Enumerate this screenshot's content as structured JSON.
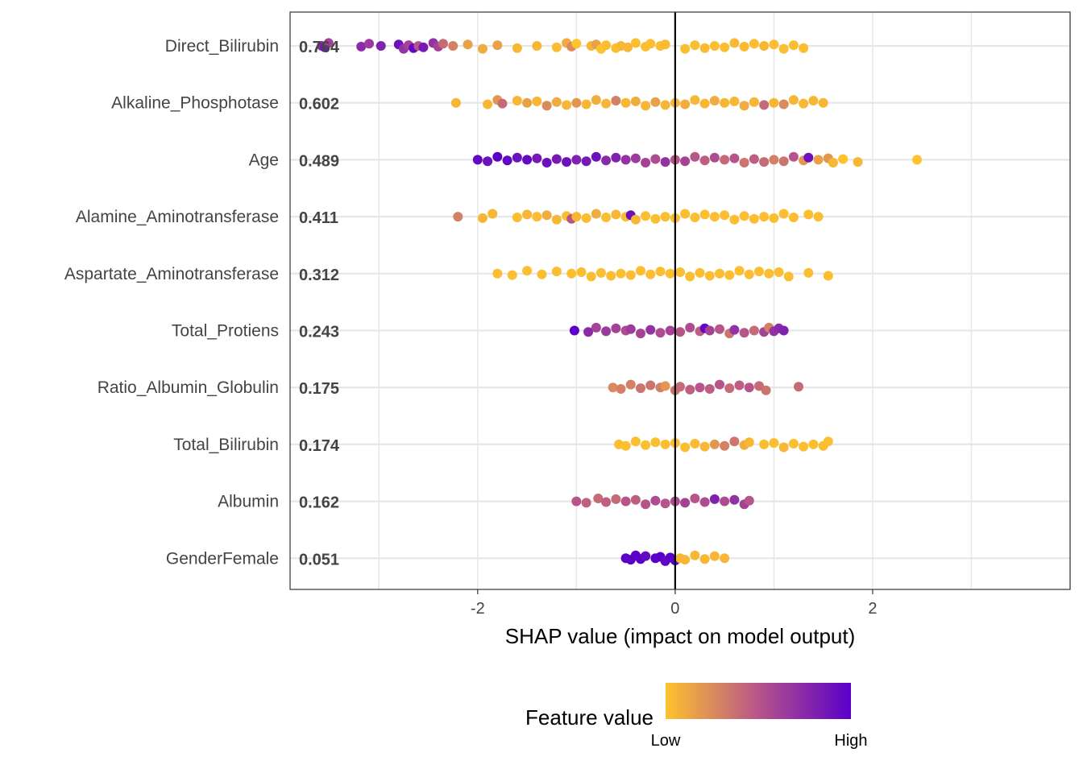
{
  "chart_data": {
    "type": "scatter",
    "subtype": "shap-summary-beeswarm",
    "xlabel": "SHAP value (impact on model output)",
    "xlim": [
      -3.9,
      4.0
    ],
    "x_ticks": [
      -2,
      0,
      2
    ],
    "x_tick_labels": [
      "-2",
      "0",
      "2"
    ],
    "zero_line": 0,
    "grid": true,
    "legend": {
      "title": "Feature value",
      "position": "bottom",
      "low_label": "Low",
      "high_label": "High",
      "low_color": "#FEC22C",
      "mid_color": "#B7548A",
      "high_color": "#5A00C8"
    },
    "features": [
      {
        "name": "Direct_Bilirubin",
        "mean_abs_shap": "0.764",
        "points": [
          [
            -3.58,
            0.75
          ],
          [
            -3.55,
            0.85
          ],
          [
            -3.51,
            0.6
          ],
          [
            -3.18,
            0.75
          ],
          [
            -3.1,
            0.65
          ],
          [
            -2.98,
            0.8
          ],
          [
            -2.8,
            0.9
          ],
          [
            -2.75,
            0.7
          ],
          [
            -2.7,
            0.6
          ],
          [
            -2.65,
            0.95
          ],
          [
            -2.6,
            0.5
          ],
          [
            -2.55,
            0.85
          ],
          [
            -2.45,
            0.7
          ],
          [
            -2.4,
            0.6
          ],
          [
            -2.35,
            0.4
          ],
          [
            -2.25,
            0.3
          ],
          [
            -2.1,
            0.15
          ],
          [
            -1.95,
            0.1
          ],
          [
            -1.8,
            0.15
          ],
          [
            -1.6,
            0.05
          ],
          [
            -1.4,
            0.05
          ],
          [
            -1.2,
            0.03
          ],
          [
            -1.1,
            0.1
          ],
          [
            -1.05,
            0.25
          ],
          [
            -1.0,
            0.0
          ],
          [
            -0.85,
            0.05
          ],
          [
            -0.8,
            0.15
          ],
          [
            -0.75,
            0.0
          ],
          [
            -0.7,
            0.02
          ],
          [
            -0.6,
            0.02
          ],
          [
            -0.55,
            0.05
          ],
          [
            -0.48,
            0.05
          ],
          [
            -0.4,
            0.02
          ],
          [
            -0.3,
            0.02
          ],
          [
            -0.25,
            0.02
          ],
          [
            -0.15,
            0.02
          ],
          [
            -0.1,
            0.03
          ],
          [
            0.1,
            0.02
          ],
          [
            0.2,
            0.02
          ],
          [
            0.3,
            0.03
          ],
          [
            0.4,
            0.02
          ],
          [
            0.5,
            0.02
          ],
          [
            0.6,
            0.04
          ],
          [
            0.7,
            0.03
          ],
          [
            0.8,
            0.02
          ],
          [
            0.9,
            0.05
          ],
          [
            1.0,
            0.02
          ],
          [
            1.1,
            0.02
          ],
          [
            1.2,
            0.02
          ],
          [
            1.3,
            0.02
          ]
        ]
      },
      {
        "name": "Alkaline_Phosphotase",
        "mean_abs_shap": "0.602",
        "points": [
          [
            -2.22,
            0.05
          ],
          [
            -1.9,
            0.05
          ],
          [
            -1.8,
            0.2
          ],
          [
            -1.75,
            0.4
          ],
          [
            -1.6,
            0.05
          ],
          [
            -1.5,
            0.15
          ],
          [
            -1.4,
            0.05
          ],
          [
            -1.3,
            0.25
          ],
          [
            -1.2,
            0.1
          ],
          [
            -1.1,
            0.05
          ],
          [
            -1.0,
            0.2
          ],
          [
            -0.9,
            0.05
          ],
          [
            -0.8,
            0.1
          ],
          [
            -0.7,
            0.05
          ],
          [
            -0.6,
            0.3
          ],
          [
            -0.5,
            0.05
          ],
          [
            -0.4,
            0.1
          ],
          [
            -0.3,
            0.05
          ],
          [
            -0.2,
            0.15
          ],
          [
            -0.1,
            0.05
          ],
          [
            0.0,
            0.05
          ],
          [
            0.1,
            0.1
          ],
          [
            0.2,
            0.05
          ],
          [
            0.3,
            0.05
          ],
          [
            0.4,
            0.1
          ],
          [
            0.5,
            0.05
          ],
          [
            0.6,
            0.05
          ],
          [
            0.7,
            0.1
          ],
          [
            0.8,
            0.05
          ],
          [
            0.9,
            0.4
          ],
          [
            1.0,
            0.05
          ],
          [
            1.1,
            0.25
          ],
          [
            1.2,
            0.05
          ],
          [
            1.3,
            0.05
          ],
          [
            1.4,
            0.05
          ],
          [
            1.5,
            0.05
          ]
        ]
      },
      {
        "name": "Age",
        "mean_abs_shap": "0.489",
        "points": [
          [
            -2.0,
            0.95
          ],
          [
            -1.9,
            0.9
          ],
          [
            -1.8,
            1.0
          ],
          [
            -1.7,
            0.95
          ],
          [
            -1.6,
            0.9
          ],
          [
            -1.5,
            0.95
          ],
          [
            -1.4,
            0.85
          ],
          [
            -1.3,
            0.9
          ],
          [
            -1.2,
            0.85
          ],
          [
            -1.1,
            0.9
          ],
          [
            -1.0,
            0.8
          ],
          [
            -0.9,
            0.85
          ],
          [
            -0.8,
            0.9
          ],
          [
            -0.7,
            0.75
          ],
          [
            -0.6,
            0.8
          ],
          [
            -0.5,
            0.7
          ],
          [
            -0.4,
            0.65
          ],
          [
            -0.3,
            0.6
          ],
          [
            -0.2,
            0.55
          ],
          [
            -0.1,
            0.7
          ],
          [
            0.0,
            0.5
          ],
          [
            0.1,
            0.6
          ],
          [
            0.2,
            0.5
          ],
          [
            0.3,
            0.45
          ],
          [
            0.4,
            0.55
          ],
          [
            0.5,
            0.4
          ],
          [
            0.6,
            0.5
          ],
          [
            0.7,
            0.35
          ],
          [
            0.8,
            0.45
          ],
          [
            0.9,
            0.4
          ],
          [
            1.0,
            0.3
          ],
          [
            1.1,
            0.35
          ],
          [
            1.2,
            0.5
          ],
          [
            1.3,
            0.2
          ],
          [
            1.35,
            0.9
          ],
          [
            1.45,
            0.15
          ],
          [
            1.55,
            0.2
          ],
          [
            1.6,
            0.05
          ],
          [
            1.7,
            0.0
          ],
          [
            1.85,
            0.05
          ],
          [
            2.45,
            0.0
          ]
        ]
      },
      {
        "name": "Alamine_Aminotransferase",
        "mean_abs_shap": "0.411",
        "points": [
          [
            -2.2,
            0.3
          ],
          [
            -1.95,
            0.05
          ],
          [
            -1.85,
            0.05
          ],
          [
            -1.6,
            0.02
          ],
          [
            -1.5,
            0.05
          ],
          [
            -1.4,
            0.02
          ],
          [
            -1.3,
            0.1
          ],
          [
            -1.2,
            0.05
          ],
          [
            -1.1,
            0.02
          ],
          [
            -1.05,
            0.5
          ],
          [
            -1.0,
            0.05
          ],
          [
            -0.9,
            0.02
          ],
          [
            -0.8,
            0.1
          ],
          [
            -0.7,
            0.02
          ],
          [
            -0.6,
            0.05
          ],
          [
            -0.5,
            0.02
          ],
          [
            -0.45,
            0.9
          ],
          [
            -0.4,
            0.05
          ],
          [
            -0.3,
            0.02
          ],
          [
            -0.2,
            0.02
          ],
          [
            -0.1,
            0.02
          ],
          [
            0.0,
            0.02
          ],
          [
            0.1,
            0.02
          ],
          [
            0.2,
            0.02
          ],
          [
            0.3,
            0.02
          ],
          [
            0.4,
            0.02
          ],
          [
            0.5,
            0.02
          ],
          [
            0.6,
            0.02
          ],
          [
            0.7,
            0.02
          ],
          [
            0.8,
            0.02
          ],
          [
            0.9,
            0.02
          ],
          [
            1.0,
            0.02
          ],
          [
            1.1,
            0.02
          ],
          [
            1.2,
            0.02
          ],
          [
            1.35,
            0.02
          ],
          [
            1.45,
            0.02
          ]
        ]
      },
      {
        "name": "Aspartate_Aminotransferase",
        "mean_abs_shap": "0.312",
        "points": [
          [
            -1.8,
            0.02
          ],
          [
            -1.65,
            0.02
          ],
          [
            -1.5,
            0.02
          ],
          [
            -1.35,
            0.02
          ],
          [
            -1.2,
            0.02
          ],
          [
            -1.05,
            0.02
          ],
          [
            -0.95,
            0.02
          ],
          [
            -0.85,
            0.02
          ],
          [
            -0.75,
            0.02
          ],
          [
            -0.65,
            0.02
          ],
          [
            -0.55,
            0.02
          ],
          [
            -0.45,
            0.02
          ],
          [
            -0.35,
            0.02
          ],
          [
            -0.25,
            0.02
          ],
          [
            -0.15,
            0.02
          ],
          [
            -0.05,
            0.02
          ],
          [
            0.05,
            0.02
          ],
          [
            0.15,
            0.02
          ],
          [
            0.25,
            0.02
          ],
          [
            0.35,
            0.02
          ],
          [
            0.45,
            0.02
          ],
          [
            0.55,
            0.02
          ],
          [
            0.65,
            0.02
          ],
          [
            0.75,
            0.02
          ],
          [
            0.85,
            0.02
          ],
          [
            0.95,
            0.02
          ],
          [
            1.05,
            0.02
          ],
          [
            1.15,
            0.02
          ],
          [
            1.35,
            0.02
          ],
          [
            1.55,
            0.02
          ]
        ]
      },
      {
        "name": "Total_Protiens",
        "mean_abs_shap": "0.243",
        "points": [
          [
            -1.02,
            1.0
          ],
          [
            -0.88,
            0.75
          ],
          [
            -0.8,
            0.6
          ],
          [
            -0.7,
            0.65
          ],
          [
            -0.6,
            0.6
          ],
          [
            -0.5,
            0.55
          ],
          [
            -0.45,
            0.65
          ],
          [
            -0.35,
            0.6
          ],
          [
            -0.25,
            0.7
          ],
          [
            -0.15,
            0.55
          ],
          [
            -0.05,
            0.6
          ],
          [
            0.05,
            0.5
          ],
          [
            0.15,
            0.55
          ],
          [
            0.25,
            0.45
          ],
          [
            0.3,
            0.95
          ],
          [
            0.35,
            0.6
          ],
          [
            0.45,
            0.5
          ],
          [
            0.55,
            0.35
          ],
          [
            0.6,
            0.7
          ],
          [
            0.7,
            0.5
          ],
          [
            0.8,
            0.4
          ],
          [
            0.9,
            0.6
          ],
          [
            0.95,
            0.3
          ],
          [
            1.0,
            0.7
          ],
          [
            1.05,
            0.75
          ],
          [
            1.1,
            0.8
          ]
        ]
      },
      {
        "name": "Ratio_Albumin_Globulin",
        "mean_abs_shap": "0.175",
        "points": [
          [
            -0.63,
            0.25
          ],
          [
            -0.55,
            0.3
          ],
          [
            -0.45,
            0.3
          ],
          [
            -0.35,
            0.35
          ],
          [
            -0.25,
            0.35
          ],
          [
            -0.15,
            0.3
          ],
          [
            -0.1,
            0.2
          ],
          [
            0.0,
            0.35
          ],
          [
            0.05,
            0.4
          ],
          [
            0.15,
            0.45
          ],
          [
            0.25,
            0.5
          ],
          [
            0.35,
            0.45
          ],
          [
            0.45,
            0.5
          ],
          [
            0.55,
            0.4
          ],
          [
            0.65,
            0.45
          ],
          [
            0.75,
            0.5
          ],
          [
            0.85,
            0.4
          ],
          [
            0.92,
            0.35
          ],
          [
            1.25,
            0.4
          ]
        ]
      },
      {
        "name": "Total_Bilirubin",
        "mean_abs_shap": "0.174",
        "points": [
          [
            -0.57,
            0.02
          ],
          [
            -0.5,
            0.02
          ],
          [
            -0.4,
            0.02
          ],
          [
            -0.3,
            0.02
          ],
          [
            -0.2,
            0.02
          ],
          [
            -0.1,
            0.02
          ],
          [
            0.0,
            0.02
          ],
          [
            0.1,
            0.02
          ],
          [
            0.2,
            0.03
          ],
          [
            0.3,
            0.05
          ],
          [
            0.4,
            0.2
          ],
          [
            0.5,
            0.3
          ],
          [
            0.6,
            0.35
          ],
          [
            0.7,
            0.1
          ],
          [
            0.75,
            0.05
          ],
          [
            0.9,
            0.02
          ],
          [
            1.0,
            0.02
          ],
          [
            1.1,
            0.05
          ],
          [
            1.2,
            0.02
          ],
          [
            1.3,
            0.02
          ],
          [
            1.4,
            0.02
          ],
          [
            1.5,
            0.02
          ],
          [
            1.55,
            0.02
          ]
        ]
      },
      {
        "name": "Albumin",
        "mean_abs_shap": "0.162",
        "points": [
          [
            -1.0,
            0.5
          ],
          [
            -0.9,
            0.45
          ],
          [
            -0.78,
            0.4
          ],
          [
            -0.7,
            0.45
          ],
          [
            -0.6,
            0.4
          ],
          [
            -0.5,
            0.5
          ],
          [
            -0.4,
            0.45
          ],
          [
            -0.3,
            0.5
          ],
          [
            -0.2,
            0.55
          ],
          [
            -0.1,
            0.5
          ],
          [
            0.0,
            0.55
          ],
          [
            0.1,
            0.6
          ],
          [
            0.2,
            0.5
          ],
          [
            0.3,
            0.55
          ],
          [
            0.4,
            0.8
          ],
          [
            0.5,
            0.55
          ],
          [
            0.6,
            0.7
          ],
          [
            0.7,
            0.6
          ],
          [
            0.75,
            0.5
          ]
        ]
      },
      {
        "name": "GenderFemale",
        "mean_abs_shap": "0.051",
        "points": [
          [
            -0.5,
            1.0
          ],
          [
            -0.45,
            1.0
          ],
          [
            -0.4,
            1.0
          ],
          [
            -0.35,
            1.0
          ],
          [
            -0.3,
            0.95
          ],
          [
            -0.2,
            1.0
          ],
          [
            -0.15,
            1.0
          ],
          [
            -0.1,
            0.95
          ],
          [
            -0.05,
            1.0
          ],
          [
            0.0,
            1.0
          ],
          [
            0.05,
            0.05
          ],
          [
            0.1,
            0.05
          ],
          [
            0.2,
            0.05
          ],
          [
            0.3,
            0.05
          ],
          [
            0.4,
            0.05
          ],
          [
            0.5,
            0.05
          ]
        ]
      }
    ]
  }
}
